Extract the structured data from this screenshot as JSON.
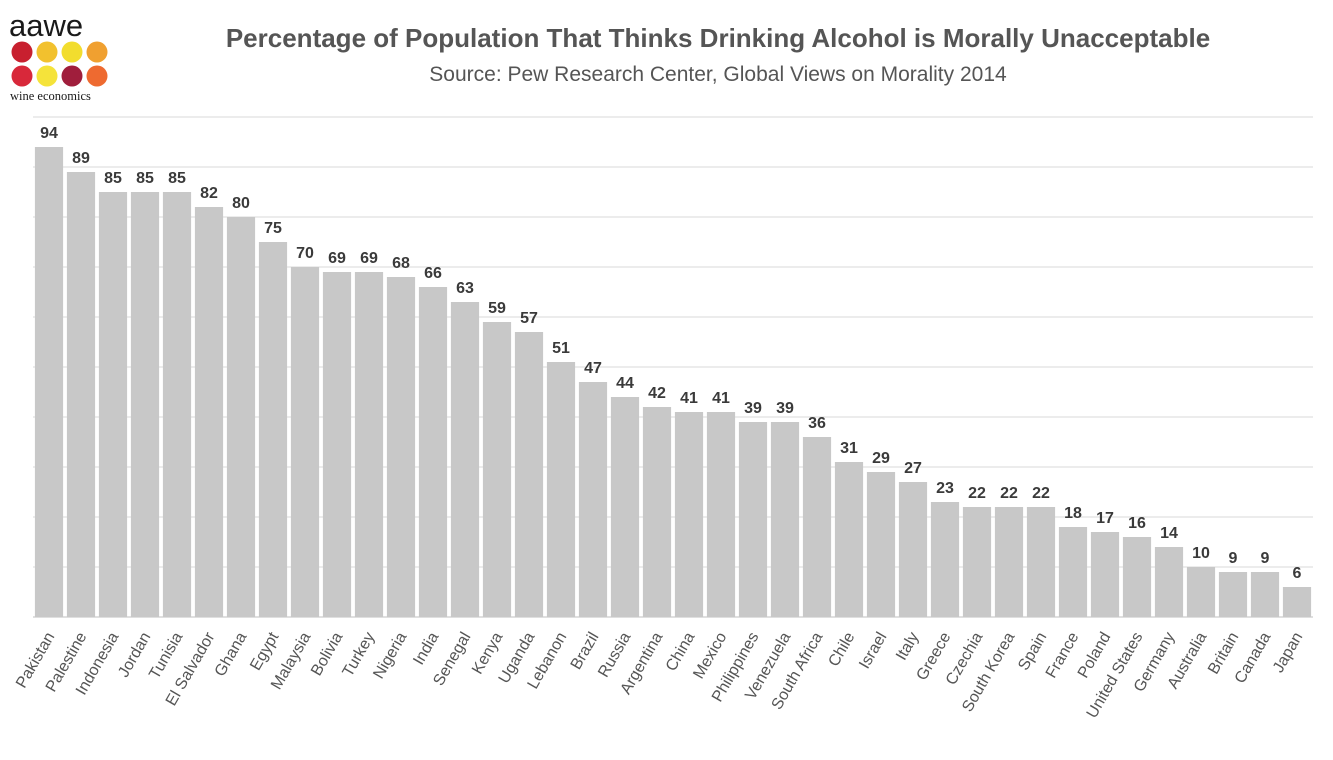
{
  "logo": {
    "wordmark": "aawe",
    "subtitle": "wine economics",
    "dot_colors": [
      "#c8202f",
      "#f2c12e",
      "#f2dd2e",
      "#f0a030",
      "#d8283a",
      "#f5e33a",
      "#a01e3c",
      "#ee6a30"
    ]
  },
  "chart_data": {
    "type": "bar",
    "title": "Percentage of Population That Thinks Drinking Alcohol is Morally Unacceptable",
    "subtitle": "Source: Pew Research Center, Global Views on Morality 2014",
    "xlabel": "",
    "ylabel": "",
    "ylim": [
      0,
      100
    ],
    "grid": true,
    "bar_color": "#c8c8c8",
    "categories": [
      "Pakistan",
      "Palestine",
      "Indonesia",
      "Jordan",
      "Tunisia",
      "El Salvador",
      "Ghana",
      "Egypt",
      "Malaysia",
      "Bolivia",
      "Turkey",
      "Nigeria",
      "India",
      "Senegal",
      "Kenya",
      "Uganda",
      "Lebanon",
      "Brazil",
      "Russia",
      "Argentina",
      "China",
      "Mexico",
      "Philippines",
      "Venezuela",
      "South Africa",
      "Chile",
      "Israel",
      "Italy",
      "Greece",
      "Czechia",
      "South Korea",
      "Spain",
      "France",
      "Poland",
      "United States",
      "Germany",
      "Australia",
      "Britain",
      "Canada",
      "Japan"
    ],
    "values": [
      94,
      89,
      85,
      85,
      85,
      82,
      80,
      75,
      70,
      69,
      69,
      68,
      66,
      63,
      59,
      57,
      51,
      47,
      44,
      42,
      41,
      41,
      39,
      39,
      36,
      31,
      29,
      27,
      23,
      22,
      22,
      22,
      18,
      17,
      16,
      14,
      10,
      9,
      9,
      6
    ]
  }
}
